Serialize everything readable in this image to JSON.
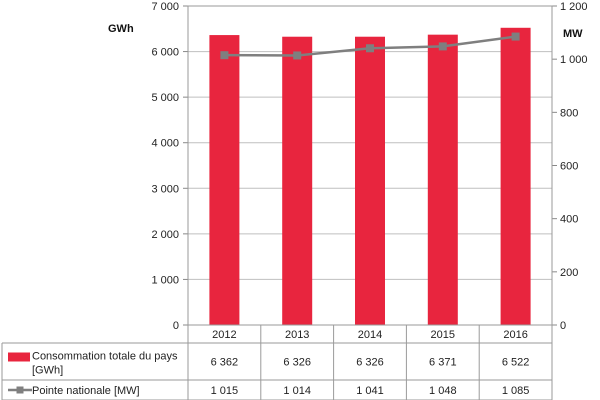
{
  "chart_data": {
    "type": "bar",
    "categories": [
      "2012",
      "2013",
      "2014",
      "2015",
      "2016"
    ],
    "left_axis": {
      "unit_label": "GWh",
      "ylim": [
        0,
        7000
      ],
      "ticks": [
        "0",
        "1 000",
        "2 000",
        "3 000",
        "4 000",
        "5 000",
        "6 000",
        "7 000"
      ]
    },
    "right_axis": {
      "unit_label": "MW",
      "ylim": [
        0,
        1200
      ],
      "ticks": [
        "0",
        "200",
        "400",
        "600",
        "800",
        "1 000",
        "1 200"
      ]
    },
    "series": [
      {
        "name": "Consommation totale du pays [GWh]",
        "name_lines": [
          "Consommation totale du pays",
          "[GWh]"
        ],
        "type": "bar",
        "axis": "left",
        "color": "#e8253e",
        "values": [
          6362,
          6326,
          6326,
          6371,
          6522
        ],
        "value_labels": [
          "6 362",
          "6 326",
          "6 326",
          "6 371",
          "6 522"
        ]
      },
      {
        "name": "Pointe nationale [MW]",
        "name_lines": [
          "Pointe nationale [MW]"
        ],
        "type": "line",
        "axis": "right",
        "color": "#7f7f7f",
        "values": [
          1015,
          1014,
          1041,
          1048,
          1085
        ],
        "value_labels": [
          "1 015",
          "1 014",
          "1 041",
          "1 048",
          "1 085"
        ]
      }
    ],
    "grid": true,
    "legend_placement": "data table below chart"
  }
}
